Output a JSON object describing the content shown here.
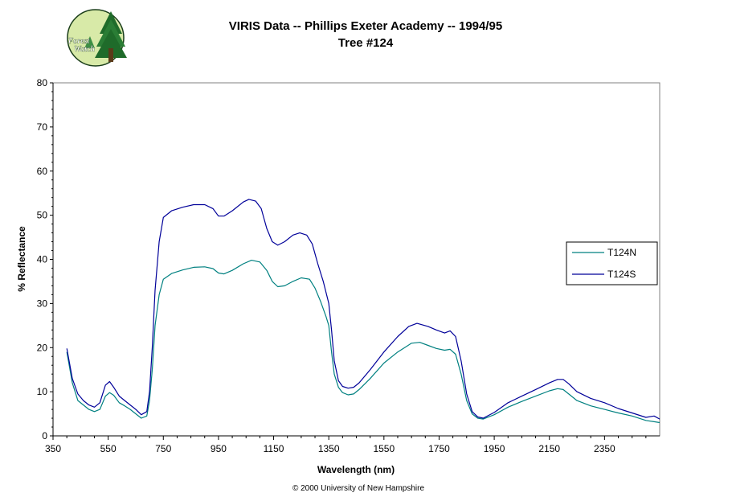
{
  "logo": {
    "icon": "forest-watch-logo-icon",
    "text_line1": "Forest",
    "text_line2": "Watch"
  },
  "footer": {
    "copyright": "© 2000 University of New Hampshire"
  },
  "chart_data": {
    "type": "line",
    "title": "VIRIS Data -- Phillips Exeter Academy -- 1994/95",
    "subtitle": "Tree #124",
    "xlabel": "Wavelength (nm)",
    "ylabel": "% Reflectance",
    "xlim": [
      350,
      2550
    ],
    "ylim": [
      0,
      80
    ],
    "xticks": [
      350,
      550,
      750,
      950,
      1150,
      1350,
      1550,
      1750,
      1950,
      2150,
      2350
    ],
    "yticks": [
      0,
      10,
      20,
      30,
      40,
      50,
      60,
      70,
      80
    ],
    "grid": false,
    "legend": "right",
    "series": [
      {
        "name": "T124N",
        "color": "#008080",
        "points": [
          [
            400,
            19
          ],
          [
            420,
            12
          ],
          [
            440,
            8
          ],
          [
            460,
            7
          ],
          [
            480,
            6
          ],
          [
            500,
            5.5
          ],
          [
            520,
            6
          ],
          [
            540,
            9
          ],
          [
            555,
            9.8
          ],
          [
            570,
            9.2
          ],
          [
            590,
            7.5
          ],
          [
            610,
            6.8
          ],
          [
            630,
            6
          ],
          [
            650,
            5
          ],
          [
            670,
            4
          ],
          [
            690,
            4.5
          ],
          [
            700,
            8
          ],
          [
            710,
            15
          ],
          [
            720,
            25
          ],
          [
            735,
            32
          ],
          [
            750,
            35.5
          ],
          [
            780,
            36.8
          ],
          [
            820,
            37.6
          ],
          [
            860,
            38.2
          ],
          [
            900,
            38.3
          ],
          [
            930,
            37.9
          ],
          [
            950,
            36.9
          ],
          [
            970,
            36.7
          ],
          [
            1000,
            37.5
          ],
          [
            1040,
            39
          ],
          [
            1070,
            39.8
          ],
          [
            1100,
            39.4
          ],
          [
            1125,
            37.5
          ],
          [
            1145,
            35
          ],
          [
            1165,
            33.8
          ],
          [
            1190,
            34
          ],
          [
            1220,
            35
          ],
          [
            1250,
            35.8
          ],
          [
            1280,
            35.5
          ],
          [
            1300,
            33.5
          ],
          [
            1320,
            30.5
          ],
          [
            1340,
            27
          ],
          [
            1350,
            25
          ],
          [
            1360,
            19
          ],
          [
            1370,
            14
          ],
          [
            1385,
            11
          ],
          [
            1400,
            9.8
          ],
          [
            1420,
            9.3
          ],
          [
            1440,
            9.5
          ],
          [
            1460,
            10.5
          ],
          [
            1500,
            13
          ],
          [
            1550,
            16.5
          ],
          [
            1600,
            19
          ],
          [
            1650,
            21
          ],
          [
            1680,
            21.2
          ],
          [
            1710,
            20.5
          ],
          [
            1740,
            19.8
          ],
          [
            1770,
            19.4
          ],
          [
            1790,
            19.6
          ],
          [
            1810,
            18.5
          ],
          [
            1830,
            14
          ],
          [
            1850,
            8
          ],
          [
            1870,
            5
          ],
          [
            1890,
            4
          ],
          [
            1910,
            3.8
          ],
          [
            1950,
            4.8
          ],
          [
            2000,
            6.5
          ],
          [
            2050,
            7.8
          ],
          [
            2100,
            9
          ],
          [
            2150,
            10.2
          ],
          [
            2180,
            10.7
          ],
          [
            2200,
            10.5
          ],
          [
            2220,
            9.5
          ],
          [
            2250,
            8
          ],
          [
            2300,
            6.8
          ],
          [
            2350,
            6
          ],
          [
            2400,
            5.2
          ],
          [
            2450,
            4.5
          ],
          [
            2500,
            3.5
          ],
          [
            2530,
            3.2
          ],
          [
            2550,
            3
          ]
        ]
      },
      {
        "name": "T124S",
        "color": "#000099",
        "points": [
          [
            400,
            19.8
          ],
          [
            420,
            13
          ],
          [
            440,
            9.5
          ],
          [
            460,
            8
          ],
          [
            480,
            7
          ],
          [
            500,
            6.5
          ],
          [
            520,
            7.5
          ],
          [
            540,
            11.5
          ],
          [
            555,
            12.3
          ],
          [
            570,
            11
          ],
          [
            590,
            9
          ],
          [
            610,
            8
          ],
          [
            630,
            7
          ],
          [
            650,
            6
          ],
          [
            670,
            4.8
          ],
          [
            690,
            5.5
          ],
          [
            700,
            10
          ],
          [
            710,
            20
          ],
          [
            720,
            33
          ],
          [
            735,
            44
          ],
          [
            750,
            49.5
          ],
          [
            780,
            51
          ],
          [
            820,
            51.8
          ],
          [
            860,
            52.4
          ],
          [
            900,
            52.4
          ],
          [
            930,
            51.5
          ],
          [
            950,
            49.8
          ],
          [
            970,
            49.8
          ],
          [
            1000,
            51
          ],
          [
            1040,
            53
          ],
          [
            1060,
            53.6
          ],
          [
            1085,
            53.2
          ],
          [
            1105,
            51.5
          ],
          [
            1125,
            47
          ],
          [
            1145,
            44
          ],
          [
            1165,
            43.2
          ],
          [
            1190,
            44
          ],
          [
            1220,
            45.5
          ],
          [
            1245,
            46
          ],
          [
            1270,
            45.5
          ],
          [
            1290,
            43.5
          ],
          [
            1310,
            39
          ],
          [
            1330,
            35
          ],
          [
            1350,
            30
          ],
          [
            1360,
            24
          ],
          [
            1370,
            17
          ],
          [
            1385,
            12.5
          ],
          [
            1400,
            11.2
          ],
          [
            1420,
            10.8
          ],
          [
            1440,
            11
          ],
          [
            1460,
            12
          ],
          [
            1500,
            15
          ],
          [
            1550,
            19
          ],
          [
            1600,
            22.5
          ],
          [
            1640,
            24.8
          ],
          [
            1670,
            25.5
          ],
          [
            1710,
            24.8
          ],
          [
            1740,
            24
          ],
          [
            1770,
            23.3
          ],
          [
            1790,
            23.8
          ],
          [
            1810,
            22.5
          ],
          [
            1830,
            17
          ],
          [
            1850,
            9.5
          ],
          [
            1870,
            5.5
          ],
          [
            1890,
            4.3
          ],
          [
            1910,
            4
          ],
          [
            1950,
            5.3
          ],
          [
            2000,
            7.5
          ],
          [
            2050,
            9
          ],
          [
            2100,
            10.5
          ],
          [
            2150,
            12
          ],
          [
            2180,
            12.8
          ],
          [
            2200,
            12.8
          ],
          [
            2220,
            11.8
          ],
          [
            2250,
            10
          ],
          [
            2300,
            8.5
          ],
          [
            2350,
            7.5
          ],
          [
            2400,
            6.2
          ],
          [
            2450,
            5.2
          ],
          [
            2500,
            4.2
          ],
          [
            2530,
            4.5
          ],
          [
            2550,
            3.8
          ]
        ]
      }
    ]
  }
}
